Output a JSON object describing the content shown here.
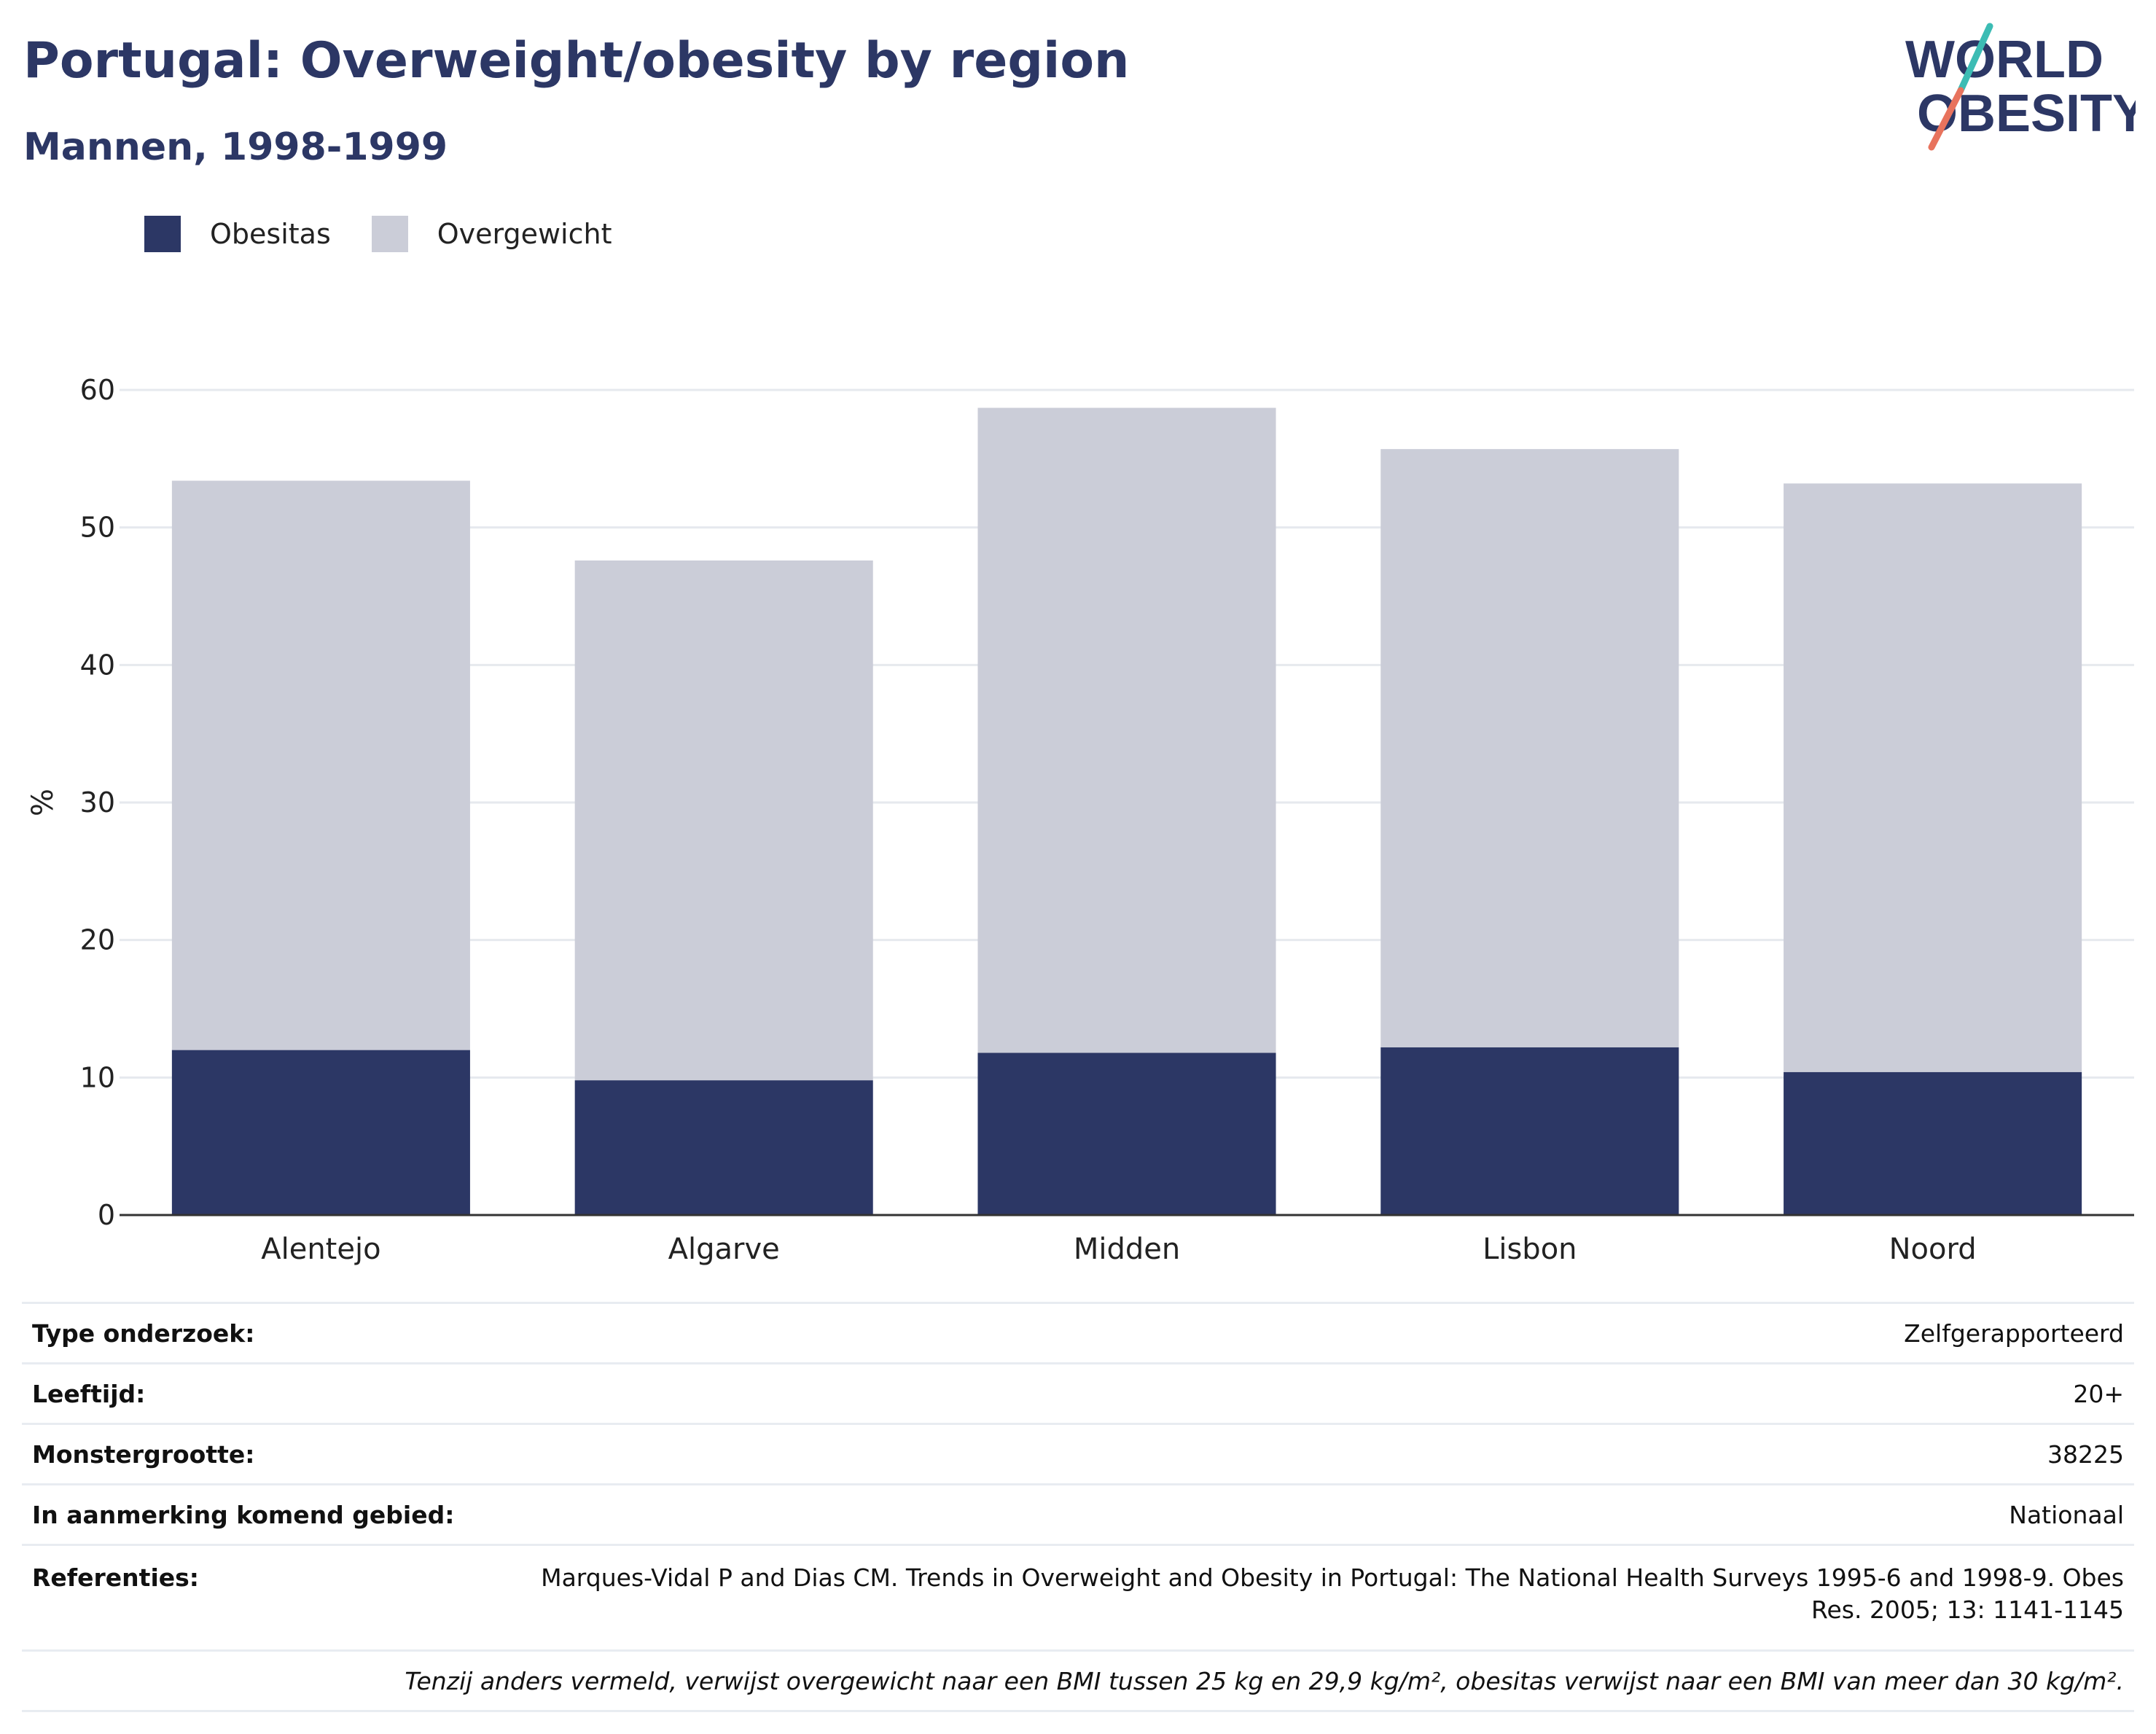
{
  "header": {
    "title": "Portugal: Overweight/obesity by region",
    "subtitle": "Mannen, 1998-1999"
  },
  "logo": {
    "line1": "WORLD",
    "line2": "OBESITY",
    "icon": "world-obesity-logo"
  },
  "colors": {
    "obese": "#2c3765",
    "overweight": "#cbcdd8",
    "title": "#2c3765",
    "grid": "#e6e9ee",
    "axis": "#333333",
    "logo_teal": "#3cbcb4",
    "logo_coral": "#e8735d"
  },
  "legend": [
    {
      "label": "Obesitas"
    },
    {
      "label": "Overgewicht"
    }
  ],
  "chart_data": {
    "type": "bar",
    "stacked": true,
    "categories": [
      "Alentejo",
      "Algarve",
      "Midden",
      "Lisbon",
      "Noord"
    ],
    "series": [
      {
        "name": "Obesitas",
        "values": [
          12.0,
          9.8,
          11.8,
          12.2,
          10.4
        ]
      },
      {
        "name": "Overgewicht",
        "values": [
          41.4,
          37.8,
          46.9,
          43.5,
          42.8
        ]
      }
    ],
    "ylabel": "%",
    "xlabel": "",
    "ylim": [
      0,
      60
    ],
    "yticks": [
      0,
      10,
      20,
      30,
      40,
      50,
      60
    ],
    "grid": true,
    "legend_position": "top-left"
  },
  "info": {
    "survey_type": {
      "label": "Type onderzoek:",
      "value": "Zelfgerapporteerd"
    },
    "age": {
      "label": "Leeftijd:",
      "value": "20+"
    },
    "sample_size": {
      "label": "Monstergrootte:",
      "value": "38225"
    },
    "area": {
      "label": "In aanmerking komend gebied:",
      "value": "Nationaal"
    },
    "references": {
      "label": "Referenties:",
      "line1": "Marques-Vidal P and Dias CM. Trends in Overweight and Obesity in Portugal: The National Health Surveys 1995-6 and 1998-9. Obes",
      "line2": "Res. 2005; 13: 1141-1145"
    },
    "note": "Tenzij anders vermeld, verwijst overgewicht naar een BMI tussen 25 kg en 29,9 kg/m², obesitas verwijst naar een BMI van meer dan 30 kg/m²."
  }
}
